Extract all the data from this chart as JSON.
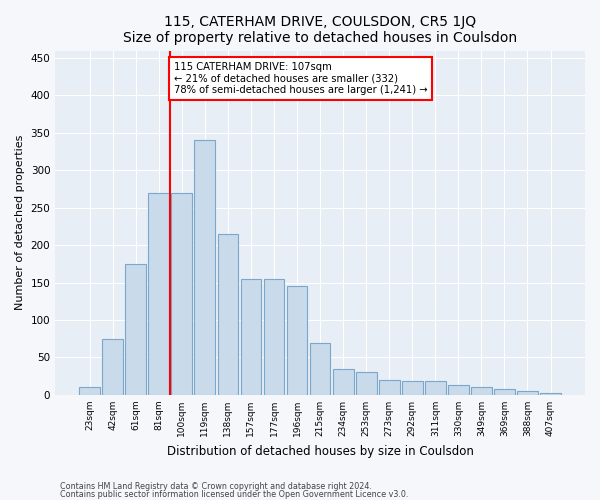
{
  "title": "115, CATERHAM DRIVE, COULSDON, CR5 1JQ",
  "subtitle": "Size of property relative to detached houses in Coulsdon",
  "xlabel": "Distribution of detached houses by size in Coulsdon",
  "ylabel": "Number of detached properties",
  "bar_color": "#c9daea",
  "bar_edge_color": "#7aa8cc",
  "background_color": "#e8eef5",
  "fig_background": "#f5f7fa",
  "categories": [
    "23sqm",
    "42sqm",
    "61sqm",
    "81sqm",
    "100sqm",
    "119sqm",
    "138sqm",
    "157sqm",
    "177sqm",
    "196sqm",
    "215sqm",
    "234sqm",
    "253sqm",
    "273sqm",
    "292sqm",
    "311sqm",
    "330sqm",
    "349sqm",
    "369sqm",
    "388sqm",
    "407sqm"
  ],
  "bar_heights": [
    10,
    75,
    175,
    270,
    270,
    340,
    215,
    155,
    155,
    145,
    70,
    35,
    30,
    20,
    18,
    18,
    13,
    10,
    8,
    5,
    3
  ],
  "ylim": [
    0,
    460
  ],
  "yticks": [
    0,
    50,
    100,
    150,
    200,
    250,
    300,
    350,
    400,
    450
  ],
  "annotation_line1": "115 CATERHAM DRIVE: 107sqm",
  "annotation_line2": "← 21% of detached houses are smaller (332)",
  "annotation_line3": "78% of semi-detached houses are larger (1,241) →",
  "vline_index": 4,
  "footer1": "Contains HM Land Registry data © Crown copyright and database right 2024.",
  "footer2": "Contains public sector information licensed under the Open Government Licence v3.0."
}
